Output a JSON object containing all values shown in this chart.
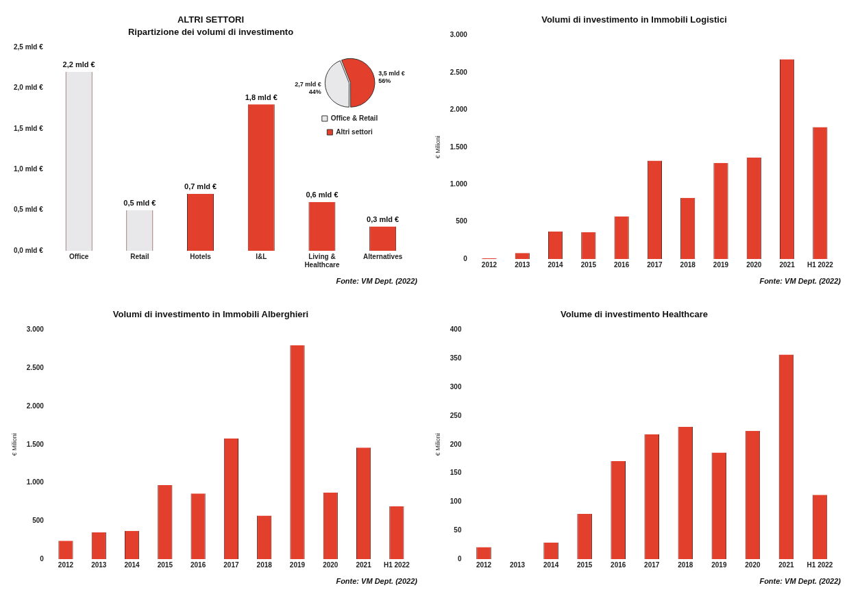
{
  "chart_data": [
    {
      "type": "bar",
      "title": "ALTRI SETTORI",
      "subtitle": "Ripartizione dei volumi di investimento",
      "categories": [
        "Office",
        "Retail",
        "Hotels",
        "I&L",
        "Living & Healthcare",
        "Alternatives"
      ],
      "values": [
        2.2,
        0.5,
        0.7,
        1.8,
        0.6,
        0.3
      ],
      "colors": [
        "#e8e8ea",
        "#e8e8ea",
        "#e2402c",
        "#e2402c",
        "#e2402c",
        "#e2402c"
      ],
      "value_labels": [
        "2,2 mld €",
        "0,5 mld €",
        "0,7 mld €",
        "1,8 mld €",
        "0,6 mld €",
        "0,3 mld €"
      ],
      "ylim": [
        0,
        2.5
      ],
      "yticks": [
        {
          "value": 0,
          "label": "0,0 mld €"
        },
        {
          "value": 0.5,
          "label": "0,5 mld €"
        },
        {
          "value": 1,
          "label": "1,0 mld €"
        },
        {
          "value": 1.5,
          "label": "1,5 mld €"
        },
        {
          "value": 2,
          "label": "2,0 mld €"
        },
        {
          "value": 2.5,
          "label": "2,5 mld €"
        }
      ],
      "grid": false,
      "annotations": [
        "Fonte: VM Dept. (2022)"
      ]
    },
    {
      "type": "pie",
      "categories": [
        "Office & Retail",
        "Altri settori"
      ],
      "values": [
        44,
        56
      ],
      "colors": [
        "#e8e8ea",
        "#e2402c"
      ],
      "value_labels": [
        "2,7 mld € 44%",
        "3,5 mld € 56%"
      ],
      "legend": "bottom"
    },
    {
      "type": "bar",
      "title": "Volumi di investimento in Immobili Logistici",
      "ylabel": "€ Milioni",
      "categories": [
        "2012",
        "2013",
        "2014",
        "2015",
        "2016",
        "2017",
        "2018",
        "2019",
        "2020",
        "2021",
        "H1 2022"
      ],
      "values": [
        10,
        80,
        370,
        360,
        570,
        1320,
        820,
        1290,
        1360,
        2680,
        1770
      ],
      "color": "#e2402c",
      "ylim": [
        0,
        3000
      ],
      "yticks": [
        0,
        500,
        {
          "value": 1000,
          "label": "1.000"
        },
        {
          "value": 1500,
          "label": "1.500"
        },
        {
          "value": 2000,
          "label": "2.000"
        },
        {
          "value": 2500,
          "label": "2.500"
        },
        {
          "value": 3000,
          "label": "3.000"
        }
      ],
      "grid": false,
      "annotations": [
        "Fonte: VM Dept. (2022)"
      ]
    },
    {
      "type": "bar",
      "title": "Volumi di investimento in Immobili Alberghieri",
      "ylabel": "€ Milioni",
      "categories": [
        "2012",
        "2013",
        "2014",
        "2015",
        "2016",
        "2017",
        "2018",
        "2019",
        "2020",
        "2021",
        "H1 2022"
      ],
      "values": [
        240,
        350,
        370,
        970,
        860,
        1580,
        570,
        2800,
        870,
        1460,
        690
      ],
      "color": "#e2402c",
      "ylim": [
        0,
        3000
      ],
      "yticks": [
        0,
        500,
        {
          "value": 1000,
          "label": "1.000"
        },
        {
          "value": 1500,
          "label": "1.500"
        },
        {
          "value": 2000,
          "label": "2.000"
        },
        {
          "value": 2500,
          "label": "2.500"
        },
        {
          "value": 3000,
          "label": "3.000"
        }
      ],
      "grid": false,
      "annotations": [
        "Fonte: VM Dept. (2022)"
      ]
    },
    {
      "type": "bar",
      "title": "Volume di investimento Healthcare",
      "ylabel": "€ Milioni",
      "categories": [
        "2012",
        "2013",
        "2014",
        "2015",
        "2016",
        "2017",
        "2018",
        "2019",
        "2020",
        "2021",
        "H1 2022"
      ],
      "values": [
        21,
        0,
        29,
        79,
        171,
        218,
        231,
        186,
        224,
        357,
        112
      ],
      "color": "#e2402c",
      "ylim": [
        0,
        400
      ],
      "yticks": [
        0,
        50,
        100,
        150,
        200,
        250,
        300,
        350,
        400
      ],
      "grid": false,
      "annotations": [
        "Fonte: VM Dept. (2022)"
      ]
    }
  ]
}
